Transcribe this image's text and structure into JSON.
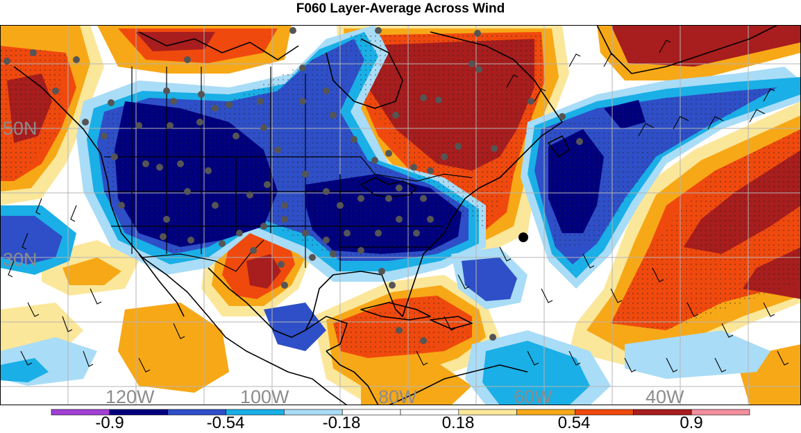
{
  "title": "F060 Layer-Average Across Wind",
  "map": {
    "lat_labels": [
      "50N",
      "30N"
    ],
    "lon_labels": [
      "120W",
      "100W",
      "80W",
      "60W",
      "40W"
    ]
  },
  "colorbar": {
    "tick_labels": [
      "-0.9",
      "-0.54",
      "-0.18",
      "0.18",
      "0.54",
      "0.9"
    ],
    "colors": [
      "#a23fd6",
      "#00007e",
      "#2e4fc7",
      "#1aafe6",
      "#a9dcf7",
      "#ffffff",
      "#ffffff",
      "#fbe79a",
      "#f7a817",
      "#f0490d",
      "#a81d1d",
      "#f4909e"
    ]
  },
  "colors": {
    "neg_strong": "#00007e",
    "neg_mid": "#2e4fc7",
    "neg_light": "#1aafe6",
    "neg_pale": "#a9dcf7",
    "pos_pale": "#fbe79a",
    "pos_light": "#f7a817",
    "pos_mid": "#f0490d",
    "pos_strong": "#a81d1d",
    "station": "#555555"
  }
}
